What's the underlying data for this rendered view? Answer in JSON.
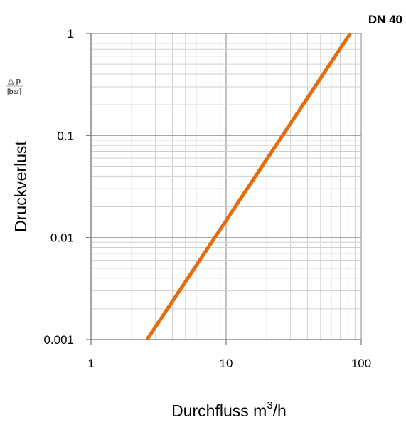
{
  "chart_data": {
    "type": "line",
    "title": "DN 40",
    "xlabel_main": "Durchfluss m",
    "xlabel_sup": "3",
    "xlabel_tail": "/h",
    "ylabel": "Druckverlust",
    "ylabel_symbol": "△ p",
    "ylabel_unit": "[bar]",
    "xscale": "log",
    "yscale": "log",
    "xlim": [
      1,
      100
    ],
    "ylim": [
      0.001,
      1
    ],
    "x_ticks": [
      "1",
      "10",
      "100"
    ],
    "y_ticks": [
      "0.001",
      "0.01",
      "0.1",
      "1"
    ],
    "grid": true,
    "series": [
      {
        "color": "#e46c0a",
        "x": [
          2.6,
          83
        ],
        "y": [
          0.001,
          1
        ]
      }
    ]
  }
}
